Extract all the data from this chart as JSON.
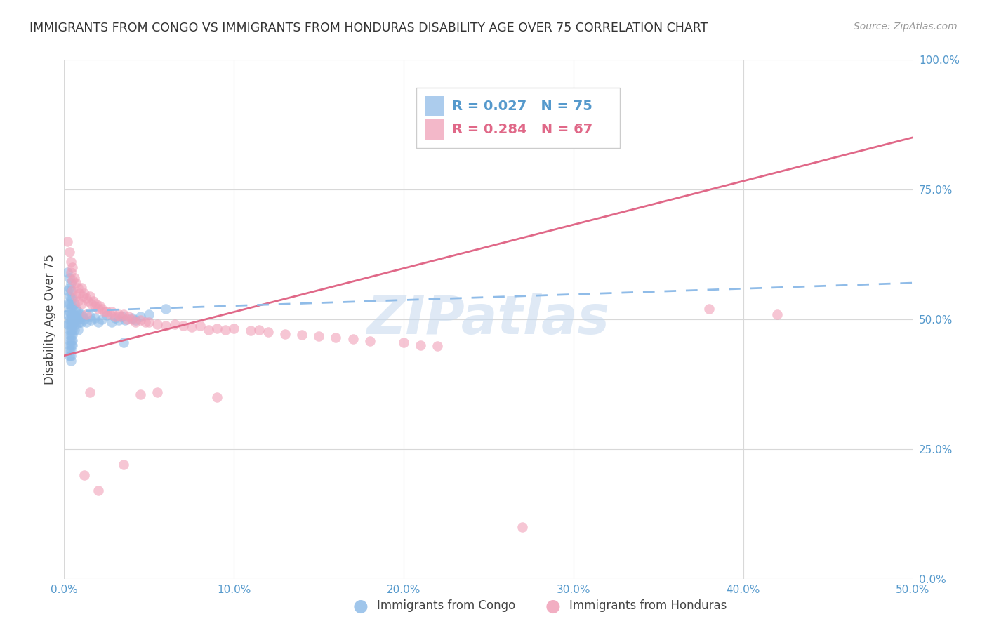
{
  "title": "IMMIGRANTS FROM CONGO VS IMMIGRANTS FROM HONDURAS DISABILITY AGE OVER 75 CORRELATION CHART",
  "source": "Source: ZipAtlas.com",
  "ylabel": "Disability Age Over 75",
  "xlim": [
    0.0,
    0.5
  ],
  "ylim": [
    0.0,
    1.0
  ],
  "x_tick_vals": [
    0.0,
    0.1,
    0.2,
    0.3,
    0.4,
    0.5
  ],
  "x_tick_labels": [
    "0.0%",
    "10.0%",
    "20.0%",
    "30.0%",
    "40.0%",
    "50.0%"
  ],
  "y_tick_vals": [
    0.0,
    0.25,
    0.5,
    0.75,
    1.0
  ],
  "y_tick_labels": [
    "0.0%",
    "25.0%",
    "50.0%",
    "75.0%",
    "100.0%"
  ],
  "grid_color": "#d8d8d8",
  "background_color": "#ffffff",
  "legend_text_congo": "R = 0.027   N = 75",
  "legend_text_honduras": "R = 0.284   N = 67",
  "color_congo": "#90bce8",
  "color_honduras": "#f0a0b8",
  "trendline_color_congo": "#90bce8",
  "trendline_color_honduras": "#e06888",
  "congo_x": [
    0.002,
    0.002,
    0.002,
    0.002,
    0.002,
    0.003,
    0.003,
    0.003,
    0.003,
    0.003,
    0.003,
    0.003,
    0.003,
    0.003,
    0.003,
    0.003,
    0.003,
    0.003,
    0.004,
    0.004,
    0.004,
    0.004,
    0.004,
    0.004,
    0.004,
    0.004,
    0.004,
    0.004,
    0.004,
    0.004,
    0.004,
    0.004,
    0.005,
    0.005,
    0.005,
    0.005,
    0.005,
    0.005,
    0.005,
    0.005,
    0.005,
    0.006,
    0.006,
    0.006,
    0.006,
    0.007,
    0.007,
    0.007,
    0.008,
    0.008,
    0.008,
    0.009,
    0.009,
    0.01,
    0.01,
    0.011,
    0.012,
    0.013,
    0.015,
    0.016,
    0.018,
    0.02,
    0.022,
    0.025,
    0.028,
    0.03,
    0.032,
    0.034,
    0.036,
    0.04,
    0.042,
    0.045,
    0.05,
    0.035,
    0.06
  ],
  "congo_y": [
    0.59,
    0.555,
    0.53,
    0.51,
    0.49,
    0.58,
    0.56,
    0.545,
    0.53,
    0.515,
    0.5,
    0.49,
    0.48,
    0.47,
    0.46,
    0.45,
    0.44,
    0.43,
    0.57,
    0.555,
    0.54,
    0.525,
    0.51,
    0.5,
    0.49,
    0.48,
    0.47,
    0.46,
    0.45,
    0.44,
    0.43,
    0.42,
    0.54,
    0.525,
    0.51,
    0.5,
    0.49,
    0.48,
    0.47,
    0.46,
    0.45,
    0.53,
    0.51,
    0.495,
    0.48,
    0.52,
    0.505,
    0.49,
    0.515,
    0.5,
    0.48,
    0.51,
    0.495,
    0.51,
    0.495,
    0.505,
    0.5,
    0.495,
    0.505,
    0.498,
    0.502,
    0.495,
    0.5,
    0.508,
    0.495,
    0.502,
    0.498,
    0.505,
    0.498,
    0.502,
    0.498,
    0.505,
    0.51,
    0.455,
    0.52
  ],
  "honduras_x": [
    0.002,
    0.003,
    0.004,
    0.004,
    0.005,
    0.005,
    0.005,
    0.006,
    0.007,
    0.007,
    0.008,
    0.008,
    0.009,
    0.01,
    0.01,
    0.011,
    0.012,
    0.013,
    0.013,
    0.014,
    0.015,
    0.016,
    0.017,
    0.018,
    0.019,
    0.02,
    0.021,
    0.022,
    0.024,
    0.025,
    0.027,
    0.028,
    0.03,
    0.032,
    0.033,
    0.035,
    0.037,
    0.038,
    0.04,
    0.042,
    0.045,
    0.048,
    0.05,
    0.055,
    0.06,
    0.065,
    0.07,
    0.075,
    0.08,
    0.085,
    0.09,
    0.095,
    0.1,
    0.11,
    0.115,
    0.12,
    0.13,
    0.14,
    0.15,
    0.16,
    0.17,
    0.18,
    0.2,
    0.21,
    0.22,
    0.38,
    0.42
  ],
  "honduras_y": [
    0.65,
    0.63,
    0.61,
    0.59,
    0.6,
    0.575,
    0.555,
    0.58,
    0.57,
    0.545,
    0.56,
    0.535,
    0.55,
    0.56,
    0.53,
    0.545,
    0.55,
    0.54,
    0.51,
    0.535,
    0.545,
    0.53,
    0.535,
    0.525,
    0.53,
    0.52,
    0.525,
    0.52,
    0.515,
    0.515,
    0.51,
    0.515,
    0.505,
    0.51,
    0.505,
    0.51,
    0.5,
    0.505,
    0.5,
    0.495,
    0.498,
    0.495,
    0.495,
    0.49,
    0.488,
    0.49,
    0.488,
    0.485,
    0.488,
    0.48,
    0.483,
    0.48,
    0.482,
    0.478,
    0.48,
    0.475,
    0.472,
    0.47,
    0.468,
    0.465,
    0.462,
    0.458,
    0.455,
    0.45,
    0.448,
    0.52,
    0.51
  ],
  "honduras_outliers_x": [
    0.012,
    0.02,
    0.035,
    0.27,
    0.045,
    0.055,
    0.015,
    0.09
  ],
  "honduras_outliers_y": [
    0.2,
    0.17,
    0.22,
    0.1,
    0.355,
    0.36,
    0.36,
    0.35
  ],
  "trendline_congo_x0": 0.0,
  "trendline_congo_x1": 0.5,
  "trendline_congo_y0": 0.515,
  "trendline_congo_y1": 0.57,
  "trendline_honduras_x0": 0.0,
  "trendline_honduras_x1": 0.5,
  "trendline_honduras_y0": 0.43,
  "trendline_honduras_y1": 0.85
}
